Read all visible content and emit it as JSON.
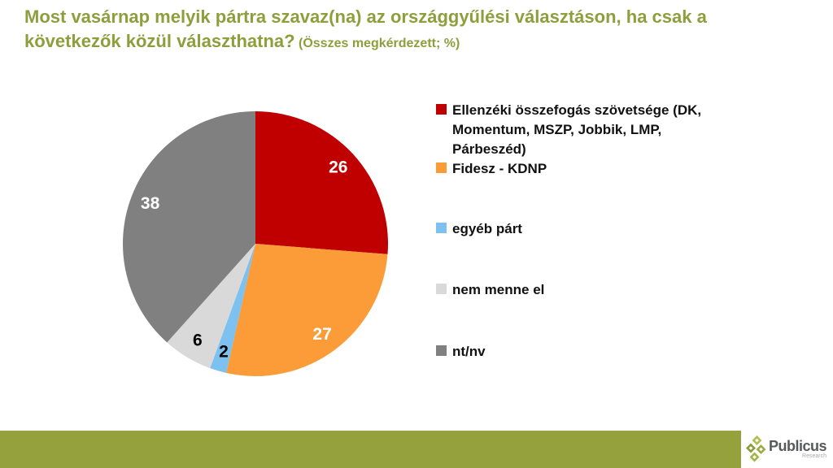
{
  "header": {
    "title_main": "Most vasárnap melyik pártra szavaz(na) az országgyűlési választáson, ha csak a\nkövetkezők közül választhatna?",
    "title_note": " (Összes megkérdezett; %)"
  },
  "chart_data": {
    "type": "pie",
    "title": "Most vasárnap melyik pártra szavaz(na) az országgyűlési választáson, ha csak a következők közül választhatna? (Összes megkérdezett; %)",
    "start_angle_deg": 0,
    "direction": "clockwise",
    "legend_position": "right",
    "slices": [
      {
        "label": "Ellenzéki összefogás szövetsége (DK, Momentum, MSZP, Jobbik, LMP, Párbeszéd)",
        "value": 26,
        "color": "#C00000",
        "label_color": "#FFFFFF"
      },
      {
        "label": "Fidesz - KDNP",
        "value": 27,
        "color": "#FB9C38",
        "label_color": "#FFFFFF"
      },
      {
        "label": "egyéb párt",
        "value": 2,
        "color": "#7CC1EF",
        "label_color": "#000000"
      },
      {
        "label": "nem menne el",
        "value": 6,
        "color": "#D9D9D9",
        "label_color": "#000000"
      },
      {
        "label": "nt/nv",
        "value": 38,
        "color": "#808080",
        "label_color": "#FFFFFF"
      }
    ]
  },
  "legend": {
    "items": [
      {
        "text": "Ellenzéki összefogás szövetsége (DK,\nMomentum, MSZP, Jobbik, LMP,\nPárbeszéd)"
      },
      {
        "text": "Fidesz - KDNP"
      },
      {
        "text": "egyéb párt"
      },
      {
        "text": "nem menne el"
      },
      {
        "text": "nt/nv"
      }
    ]
  },
  "footer": {
    "brand": "Publicus",
    "brand_sub": "Research",
    "logo_icon": "diamond-cluster-icon"
  },
  "colors": {
    "title_text": "#8E9E3C",
    "accent_bar": "#94A13C",
    "brand_text": "#58595B",
    "brand_sub_text": "#A7A9AC"
  }
}
